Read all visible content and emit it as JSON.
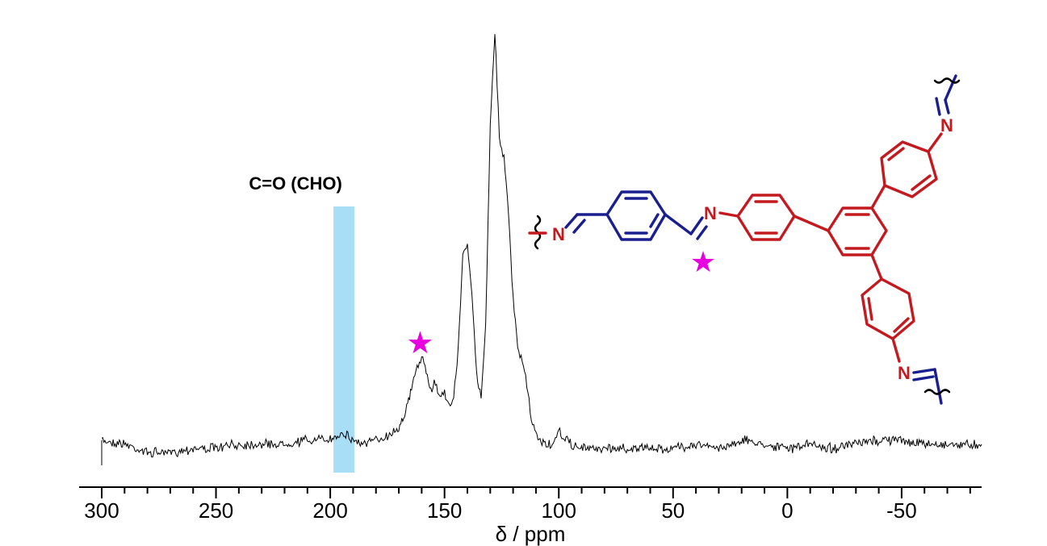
{
  "chart_data": {
    "type": "line",
    "title": "",
    "xlabel": "δ / ppm",
    "ylabel": "",
    "x_reversed": true,
    "xlim": [
      300,
      -85
    ],
    "xticks": [
      300,
      250,
      200,
      150,
      100,
      50,
      0,
      -50
    ],
    "xtick_labels": [
      "300",
      "250",
      "200",
      "150",
      "100",
      "50",
      "0",
      "-50"
    ],
    "grid": false,
    "series": [
      {
        "name": "",
        "color": "#000000",
        "x": [
          300,
          290,
          280,
          270,
          260,
          250,
          240,
          230,
          220,
          210,
          200,
          195,
          190,
          185,
          180,
          175,
          170,
          167,
          164,
          162,
          160,
          158,
          156,
          154,
          152,
          150,
          148,
          146,
          144,
          142,
          140,
          138,
          136,
          134,
          132,
          130,
          128,
          126,
          124,
          122,
          120,
          118,
          116,
          114,
          112,
          110,
          106,
          102,
          100,
          95,
          90,
          80,
          70,
          60,
          50,
          40,
          30,
          20,
          10,
          0,
          -10,
          -20,
          -30,
          -40,
          -50,
          -60,
          -70,
          -80,
          -85
        ],
        "y": [
          0.02,
          0.01,
          -0.01,
          -0.01,
          0.0,
          0.0,
          0.01,
          0.01,
          0.01,
          0.02,
          0.02,
          0.04,
          0.02,
          0.01,
          0.02,
          0.03,
          0.05,
          0.09,
          0.15,
          0.2,
          0.22,
          0.18,
          0.14,
          0.16,
          0.12,
          0.14,
          0.1,
          0.12,
          0.24,
          0.46,
          0.5,
          0.36,
          0.18,
          0.12,
          0.3,
          0.78,
          1.0,
          0.75,
          0.7,
          0.56,
          0.36,
          0.24,
          0.21,
          0.15,
          0.07,
          0.03,
          0.01,
          0.01,
          0.04,
          0.01,
          0.0,
          0.0,
          0.0,
          0.0,
          0.0,
          0.01,
          0.0,
          0.02,
          0.01,
          0.0,
          0.01,
          0.0,
          0.01,
          0.02,
          0.02,
          0.01,
          0.01,
          0.01,
          0.01
        ]
      }
    ],
    "annotations": [
      {
        "text": "C=O (CHO)",
        "x": 194,
        "kind": "highlight-band",
        "color": "#a9def7"
      },
      {
        "text": "★",
        "x": 160,
        "kind": "marker",
        "color": "#e800e0"
      }
    ]
  },
  "structure": {
    "atom_label_n": "N",
    "star_glyph": "★",
    "linker_color": "#1a1f8f",
    "core_color": "#c41a1f",
    "star_color": "#e800e0",
    "bond_color": "#000000"
  }
}
